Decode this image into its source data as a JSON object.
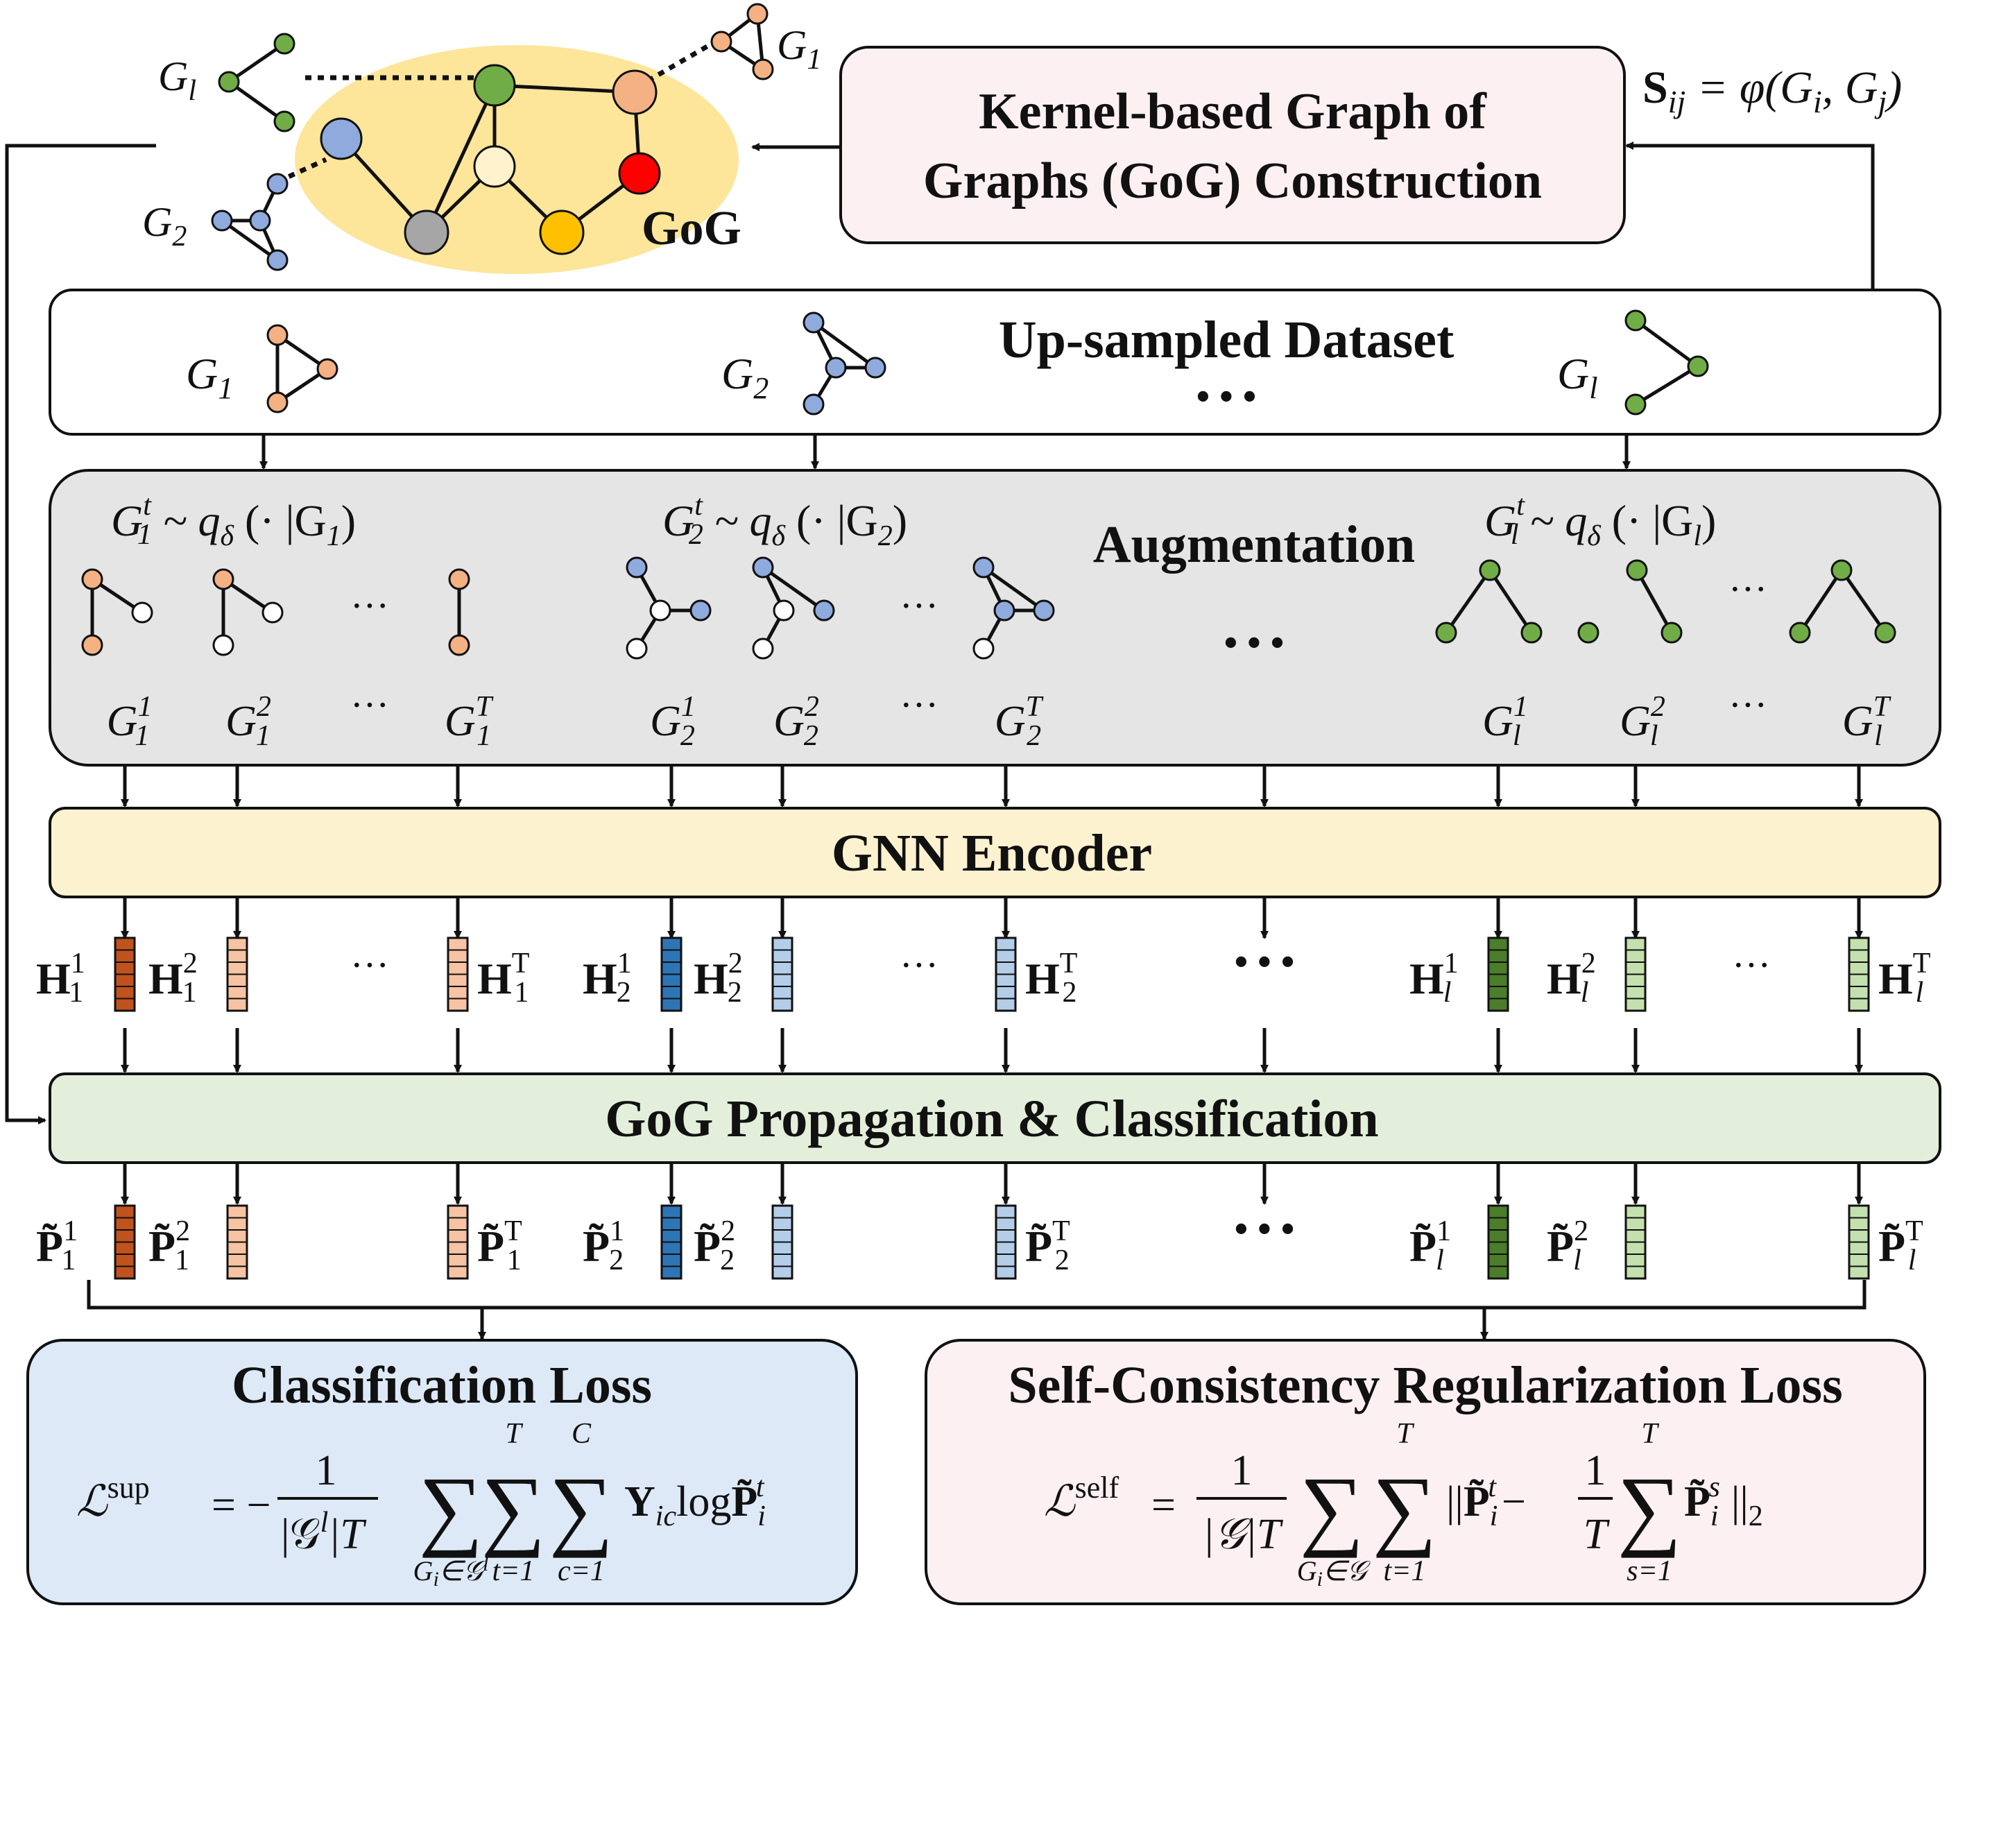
{
  "gog_panel": {
    "label": "GoG",
    "graph_labels": {
      "gl_base": "G",
      "gl_sub": "l",
      "g1_base": "G",
      "g1_sub": "1",
      "g2_base": "G",
      "g2_sub": "2"
    }
  },
  "kernel_box": {
    "line1": "Kernel-based Graph of",
    "line2": "Graphs (GoG) Construction"
  },
  "similarity_formula": {
    "S": "S",
    "sub": "ij",
    "rhs": " = φ(G",
    "i": "i",
    "comma": ", G",
    "j": "j",
    "close": ")"
  },
  "dataset_box": {
    "title": "Up-sampled Dataset",
    "ellipsis": "• • •",
    "graphs": [
      {
        "base": "G",
        "sub": "1"
      },
      {
        "base": "G",
        "sub": "2"
      },
      {
        "base": "G",
        "sub": "l"
      }
    ]
  },
  "augmentation_box": {
    "title": "Augmentation",
    "ellipsis": "• • •",
    "dots": "···",
    "formulas": [
      {
        "base": "G",
        "sub": "1",
        "sup": "t",
        "rest": " ~ q",
        "qsub": "δ",
        "tail": " (· |G",
        "tsub": "1",
        "close": ")"
      },
      {
        "base": "G",
        "sub": "2",
        "sup": "t",
        "rest": " ~ q",
        "qsub": "δ",
        "tail": " (· |G",
        "tsub": "2",
        "close": ")"
      },
      {
        "base": "G",
        "sub": "l",
        "sup": "t",
        "rest": " ~ q",
        "qsub": "δ",
        "tail": " (· |G",
        "tsub": "l",
        "close": ")"
      }
    ],
    "views": [
      {
        "base": "G",
        "sub": "1",
        "sup": "1"
      },
      {
        "base": "G",
        "sub": "1",
        "sup": "2"
      },
      {
        "base": "G",
        "sub": "1",
        "sup": "T"
      },
      {
        "base": "G",
        "sub": "2",
        "sup": "1"
      },
      {
        "base": "G",
        "sub": "2",
        "sup": "2"
      },
      {
        "base": "G",
        "sub": "2",
        "sup": "T"
      },
      {
        "base": "G",
        "sub": "l",
        "sup": "1"
      },
      {
        "base": "G",
        "sub": "l",
        "sup": "2"
      },
      {
        "base": "G",
        "sub": "l",
        "sup": "T"
      }
    ]
  },
  "encoder_box": {
    "title": "GNN Encoder"
  },
  "embeddings": {
    "ellipsis": "• • •",
    "dots": "···",
    "items": [
      {
        "base": "H",
        "sub": "1",
        "sup": "1"
      },
      {
        "base": "H",
        "sub": "1",
        "sup": "2"
      },
      {
        "base": "H",
        "sub": "1",
        "sup": "T"
      },
      {
        "base": "H",
        "sub": "2",
        "sup": "1"
      },
      {
        "base": "H",
        "sub": "2",
        "sup": "2"
      },
      {
        "base": "H",
        "sub": "2",
        "sup": "T"
      },
      {
        "base": "H",
        "sub": "l",
        "sup": "1"
      },
      {
        "base": "H",
        "sub": "l",
        "sup": "2"
      },
      {
        "base": "H",
        "sub": "l",
        "sup": "T"
      }
    ]
  },
  "propagation_box": {
    "title": "GoG Propagation & Classification"
  },
  "predictions": {
    "ellipsis": "• • •",
    "items": [
      {
        "base": "P̃",
        "sub": "1",
        "sup": "1"
      },
      {
        "base": "P̃",
        "sub": "1",
        "sup": "2"
      },
      {
        "base": "P̃",
        "sub": "1",
        "sup": "T"
      },
      {
        "base": "P̃",
        "sub": "2",
        "sup": "1"
      },
      {
        "base": "P̃",
        "sub": "2",
        "sup": "2"
      },
      {
        "base": "P̃",
        "sub": "2",
        "sup": "T"
      },
      {
        "base": "P̃",
        "sub": "l",
        "sup": "1"
      },
      {
        "base": "P̃",
        "sub": "l",
        "sup": "2"
      },
      {
        "base": "P̃",
        "sub": "l",
        "sup": "T"
      }
    ]
  },
  "classification_loss": {
    "title": "Classification Loss",
    "lhs": "ℒ",
    "lhs_sup": "sup",
    "eq": "= −",
    "frac_num": "1",
    "frac_den": "|𝒢",
    "frac_den_sup": "l",
    "frac_den_tail": "|T",
    "sum1_below": "G",
    "sum1_below_sub": "i",
    "sum1_below_tail": "∈𝒢",
    "sum1_below_sup": "l",
    "sum2_above": "T",
    "sum2_below": "t=1",
    "sum3_above": "C",
    "sum3_below": "c=1",
    "y": "Y",
    "y_sub": "ic",
    "log": "log",
    "p": "P̃",
    "p_sub": "i",
    "p_sup": "t",
    "sigma": "∑"
  },
  "self_loss": {
    "title": "Self-Consistency Regularization Loss",
    "lhs": "ℒ",
    "lhs_sup": "self",
    "eq": "=",
    "frac_num": "1",
    "frac_den": "|𝒢|T",
    "sum1_below": "G",
    "sum1_below_sub": "i",
    "sum1_below_tail": "∈𝒢",
    "sum2_above": "T",
    "sum2_below": "t=1",
    "norm_open": "||",
    "p": "P̃",
    "p_sub": "i",
    "p_sup": "t",
    "minus": "−",
    "frac2_num": "1",
    "frac2_den": "T",
    "sum3_above": "T",
    "sum3_below": "s=1",
    "p2": "P̃",
    "p2_sub": "i",
    "p2_sup": "s",
    "norm_close": "||",
    "norm_sub": "2",
    "sigma": "∑"
  },
  "colors": {
    "orange_dark": "#c0521d",
    "orange_light": "#f6c3a3",
    "blue_dark": "#2e75b6",
    "blue_light": "#b4cde9",
    "green_dark": "#4b7d2b",
    "green_light": "#c4e0ae",
    "node_orange": "#f4b183",
    "node_blue": "#8faadc",
    "node_green": "#70ad47",
    "gog_halo": "#fde59a",
    "kernel_fill": "#fdf0f3",
    "dataset_fill": "#ffffff",
    "augment_fill": "#e5e5e5",
    "encoder_fill": "#fdf2cf",
    "propagation_fill": "#e3efda",
    "class_loss_fill": "#dde9f6",
    "self_loss_fill": "#fcf0f3"
  }
}
